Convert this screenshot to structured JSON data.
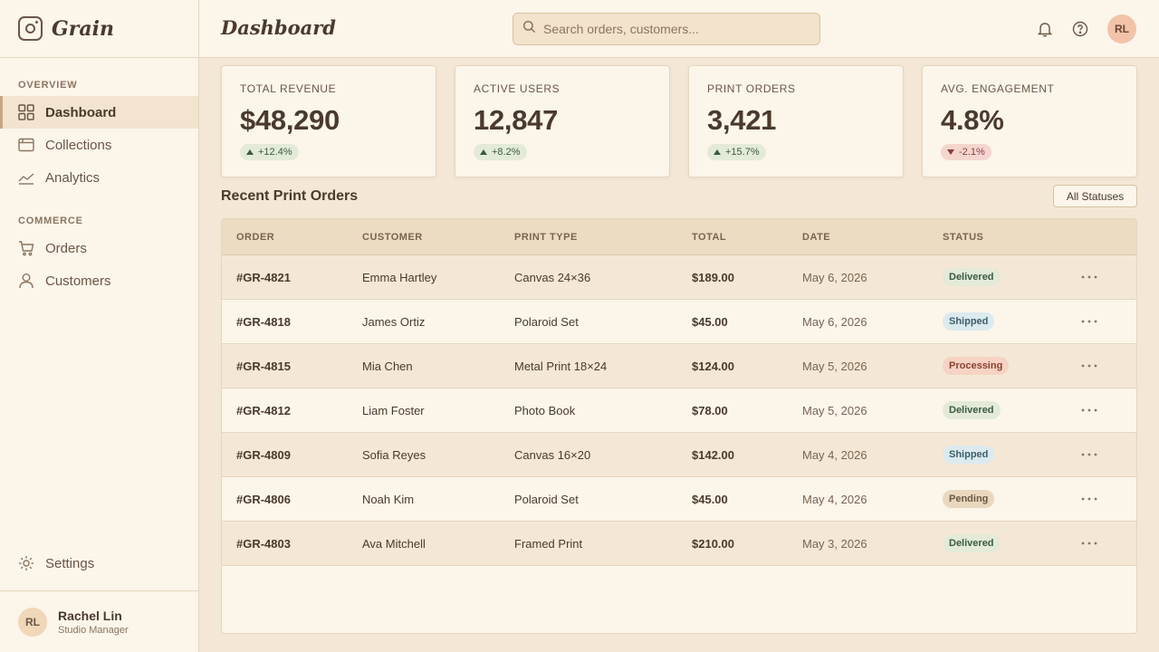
{
  "brand": {
    "name": "Grain"
  },
  "sidebar": {
    "sections": [
      {
        "heading": "OVERVIEW",
        "items": [
          {
            "label": "Dashboard",
            "icon": "grid-icon",
            "active": true
          },
          {
            "label": "Collections",
            "icon": "collections-icon"
          },
          {
            "label": "Analytics",
            "icon": "chart-line-icon"
          }
        ]
      },
      {
        "heading": "COMMERCE",
        "items": [
          {
            "label": "Orders",
            "icon": "cart-icon"
          },
          {
            "label": "Customers",
            "icon": "user-icon"
          }
        ]
      }
    ],
    "settings_label": "Settings",
    "user": {
      "initials": "RL",
      "name": "Rachel Lin",
      "role": "Studio Manager"
    }
  },
  "header": {
    "title": "Dashboard",
    "search_placeholder": "Search orders, customers...",
    "avatar_initials": "RL"
  },
  "stats": [
    {
      "label": "TOTAL REVENUE",
      "value": "$48,290",
      "delta": "+12.4%",
      "direction": "up"
    },
    {
      "label": "ACTIVE USERS",
      "value": "12,847",
      "delta": "+8.2%",
      "direction": "up"
    },
    {
      "label": "PRINT ORDERS",
      "value": "3,421",
      "delta": "+15.7%",
      "direction": "up"
    },
    {
      "label": "AVG. ENGAGEMENT",
      "value": "4.8%",
      "delta": "-2.1%",
      "direction": "down"
    }
  ],
  "orders": {
    "title": "Recent Print Orders",
    "filter_label": "All Statuses",
    "columns": [
      "ORDER",
      "CUSTOMER",
      "PRINT TYPE",
      "TOTAL",
      "DATE",
      "STATUS"
    ],
    "rows": [
      {
        "order": "#GR-4821",
        "customer": "Emma Hartley",
        "type": "Canvas 24×36",
        "total": "$189.00",
        "date": "May 6, 2026",
        "status": "Delivered"
      },
      {
        "order": "#GR-4818",
        "customer": "James Ortiz",
        "type": "Polaroid Set",
        "total": "$45.00",
        "date": "May 6, 2026",
        "status": "Shipped"
      },
      {
        "order": "#GR-4815",
        "customer": "Mia Chen",
        "type": "Metal Print 18×24",
        "total": "$124.00",
        "date": "May 5, 2026",
        "status": "Processing"
      },
      {
        "order": "#GR-4812",
        "customer": "Liam Foster",
        "type": "Photo Book",
        "total": "$78.00",
        "date": "May 5, 2026",
        "status": "Delivered"
      },
      {
        "order": "#GR-4809",
        "customer": "Sofia Reyes",
        "type": "Canvas 16×20",
        "total": "$142.00",
        "date": "May 4, 2026",
        "status": "Shipped"
      },
      {
        "order": "#GR-4806",
        "customer": "Noah Kim",
        "type": "Polaroid Set",
        "total": "$45.00",
        "date": "May 4, 2026",
        "status": "Pending"
      },
      {
        "order": "#GR-4803",
        "customer": "Ava Mitchell",
        "type": "Framed Print",
        "total": "$210.00",
        "date": "May 3, 2026",
        "status": "Delivered"
      }
    ]
  }
}
